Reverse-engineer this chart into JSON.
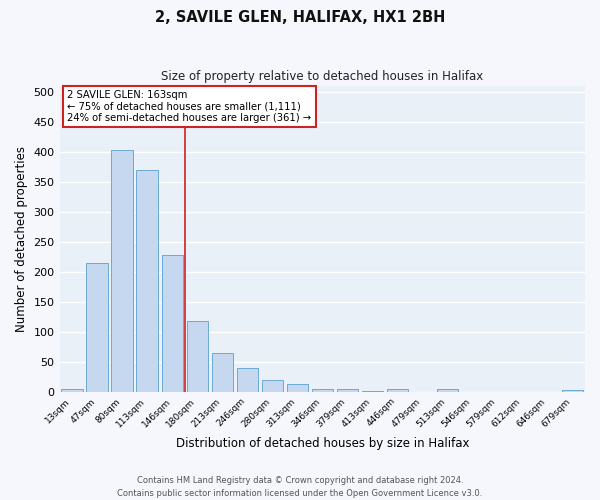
{
  "title": "2, SAVILE GLEN, HALIFAX, HX1 2BH",
  "subtitle": "Size of property relative to detached houses in Halifax",
  "xlabel": "Distribution of detached houses by size in Halifax",
  "ylabel": "Number of detached properties",
  "bar_labels": [
    "13sqm",
    "47sqm",
    "80sqm",
    "113sqm",
    "146sqm",
    "180sqm",
    "213sqm",
    "246sqm",
    "280sqm",
    "313sqm",
    "346sqm",
    "379sqm",
    "413sqm",
    "446sqm",
    "479sqm",
    "513sqm",
    "546sqm",
    "579sqm",
    "612sqm",
    "646sqm",
    "679sqm"
  ],
  "bar_heights": [
    5,
    215,
    403,
    370,
    228,
    118,
    65,
    39,
    20,
    13,
    5,
    5,
    2,
    5,
    0,
    5,
    0,
    0,
    0,
    0,
    3
  ],
  "bar_color": "#c5d8f0",
  "bar_edge_color": "#6aaad4",
  "background_color": "#eaf0f8",
  "grid_color": "#ffffff",
  "fig_background": "#f5f7fc",
  "ylim": [
    0,
    510
  ],
  "yticks": [
    0,
    50,
    100,
    150,
    200,
    250,
    300,
    350,
    400,
    450,
    500
  ],
  "property_label": "2 SAVILE GLEN: 163sqm",
  "annotation_line1": "← 75% of detached houses are smaller (1,111)",
  "annotation_line2": "24% of semi-detached houses are larger (361) →",
  "vline_pos": 4.5,
  "footer_line1": "Contains HM Land Registry data © Crown copyright and database right 2024.",
  "footer_line2": "Contains public sector information licensed under the Open Government Licence v3.0."
}
